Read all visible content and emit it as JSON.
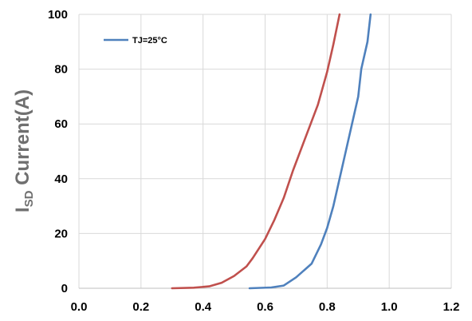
{
  "chart_data": {
    "type": "line",
    "title": "",
    "xlabel": "",
    "ylabel": {
      "main": "I",
      "subscript": "SD",
      "rest": " Current(A)"
    },
    "xlim": [
      0.0,
      1.2
    ],
    "ylim": [
      0,
      100
    ],
    "x_ticks": [
      "0.0",
      "0.2",
      "0.4",
      "0.6",
      "0.8",
      "1.0",
      "1.2"
    ],
    "y_ticks": [
      "0",
      "20",
      "40",
      "60",
      "80",
      "100"
    ],
    "x_tick_values": [
      0.0,
      0.2,
      0.4,
      0.6,
      0.8,
      1.0,
      1.2
    ],
    "y_tick_values": [
      0,
      20,
      40,
      60,
      80,
      100
    ],
    "grid": true,
    "legend_position": "top-left",
    "series": [
      {
        "name": "TJ=25°C",
        "color": "#4f81bd",
        "in_legend": true,
        "points": [
          [
            0.55,
            0
          ],
          [
            0.62,
            0.3
          ],
          [
            0.66,
            1
          ],
          [
            0.7,
            4
          ],
          [
            0.75,
            9
          ],
          [
            0.78,
            16
          ],
          [
            0.8,
            22
          ],
          [
            0.82,
            30
          ],
          [
            0.84,
            40
          ],
          [
            0.86,
            50
          ],
          [
            0.88,
            60
          ],
          [
            0.9,
            70
          ],
          [
            0.91,
            80
          ],
          [
            0.93,
            90
          ],
          [
            0.94,
            100
          ]
        ]
      },
      {
        "name": "",
        "color": "#c0504d",
        "in_legend": false,
        "points": [
          [
            0.3,
            0
          ],
          [
            0.37,
            0.2
          ],
          [
            0.42,
            0.7
          ],
          [
            0.46,
            2
          ],
          [
            0.5,
            4.5
          ],
          [
            0.54,
            8
          ],
          [
            0.56,
            11
          ],
          [
            0.6,
            18
          ],
          [
            0.63,
            25
          ],
          [
            0.66,
            33
          ],
          [
            0.69,
            43
          ],
          [
            0.73,
            55
          ],
          [
            0.77,
            67
          ],
          [
            0.8,
            79
          ],
          [
            0.82,
            89
          ],
          [
            0.84,
            100
          ]
        ]
      }
    ]
  }
}
